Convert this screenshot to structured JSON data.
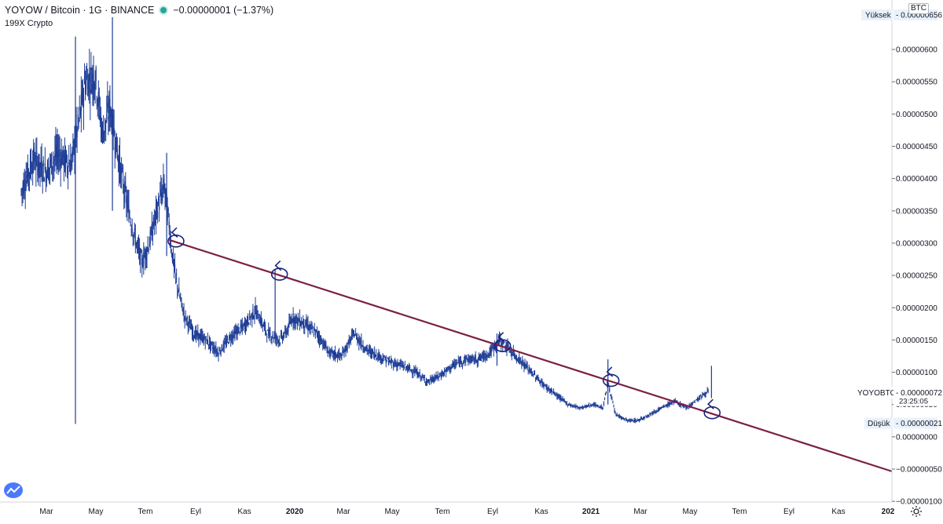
{
  "header": {
    "symbol_line": "YOYOW / Bitcoin · 1G · BINANCE",
    "change": "−0.00000001 (−1.37%)",
    "indicator": "199X Crypto",
    "currency": "BTC"
  },
  "chart_data": {
    "type": "candlestick",
    "symbol": "YOYOBTC",
    "x_tick_labels": [
      "Mar",
      "May",
      "Tem",
      "Eyl",
      "Kas",
      "2020",
      "Mar",
      "May",
      "Tem",
      "Eyl",
      "Kas",
      "2021",
      "Mar",
      "May",
      "Tem",
      "Eyl",
      "Kas",
      "202"
    ],
    "y_ticks": [
      6e-06,
      5.5e-06,
      5e-06,
      4.5e-06,
      4e-06,
      3.5e-06,
      3e-06,
      2.5e-06,
      2e-06,
      1.5e-06,
      1e-06,
      5e-07,
      0.0,
      -5e-07,
      -1e-06
    ],
    "y_tick_labels": [
      "0.00000600",
      "0.00000550",
      "0.00000500",
      "0.00000450",
      "0.00000400",
      "0.00000350",
      "0.00000300",
      "0.00000250",
      "0.00000200",
      "0.00000150",
      "0.00000100",
      "0.00000050",
      "0.00000000",
      "−0.00000050",
      "−0.00000100"
    ],
    "ylim": [
      -1.1e-06,
      6.5e-06
    ],
    "high_label": "Yüksek",
    "high_value": "0.00000656",
    "low_label": "Düşük",
    "low_value": "0.00000021",
    "last_label": "YOYOBTC",
    "last_value": "0.00000072",
    "countdown": "23:25:05",
    "series": [
      {
        "month": 0,
        "close": 3.8e-06
      },
      {
        "month": 0.5,
        "close": 4.3e-06
      },
      {
        "month": 1,
        "close": 4.1e-06
      },
      {
        "month": 1.5,
        "close": 4.4e-06
      },
      {
        "month": 2,
        "close": 4.2e-06
      },
      {
        "month": 2.3,
        "close": 4.8e-06
      },
      {
        "month": 2.6,
        "close": 5.5e-06
      },
      {
        "month": 3,
        "close": 5.6e-06
      },
      {
        "month": 3.3,
        "close": 4.7e-06
      },
      {
        "month": 3.6,
        "close": 5.1e-06
      },
      {
        "month": 4,
        "close": 4.2e-06
      },
      {
        "month": 4.3,
        "close": 3.6e-06
      },
      {
        "month": 4.6,
        "close": 3.1e-06
      },
      {
        "month": 4.9,
        "close": 2.7e-06
      },
      {
        "month": 5.2,
        "close": 3e-06
      },
      {
        "month": 5.5,
        "close": 3.5e-06
      },
      {
        "month": 5.8,
        "close": 3.9e-06
      },
      {
        "month": 6,
        "close": 3.3e-06
      },
      {
        "month": 6.1,
        "close": 2.9e-06
      },
      {
        "month": 6.3,
        "close": 2.4e-06
      },
      {
        "month": 6.6,
        "close": 1.9e-06
      },
      {
        "month": 7,
        "close": 1.6e-06
      },
      {
        "month": 7.5,
        "close": 1.5e-06
      },
      {
        "month": 8,
        "close": 1.3e-06
      },
      {
        "month": 8.5,
        "close": 1.55e-06
      },
      {
        "month": 9,
        "close": 1.7e-06
      },
      {
        "month": 9.5,
        "close": 1.95e-06
      },
      {
        "month": 10,
        "close": 1.6e-06
      },
      {
        "month": 10.5,
        "close": 1.5e-06
      },
      {
        "month": 10.8,
        "close": 1.65e-06
      },
      {
        "month": 11,
        "close": 1.85e-06
      },
      {
        "month": 11.5,
        "close": 1.75e-06
      },
      {
        "month": 12,
        "close": 1.6e-06
      },
      {
        "month": 12.5,
        "close": 1.3e-06
      },
      {
        "month": 13,
        "close": 1.25e-06
      },
      {
        "month": 13.5,
        "close": 1.6e-06
      },
      {
        "month": 14,
        "close": 1.35e-06
      },
      {
        "month": 14.5,
        "close": 1.25e-06
      },
      {
        "month": 15,
        "close": 1.15e-06
      },
      {
        "month": 15.5,
        "close": 1.1e-06
      },
      {
        "month": 16,
        "close": 1e-06
      },
      {
        "month": 16.5,
        "close": 8.5e-07
      },
      {
        "month": 17,
        "close": 9.5e-07
      },
      {
        "month": 17.5,
        "close": 1.1e-06
      },
      {
        "month": 18,
        "close": 1.2e-06
      },
      {
        "month": 18.5,
        "close": 1.2e-06
      },
      {
        "month": 19,
        "close": 1.3e-06
      },
      {
        "month": 19.4,
        "close": 1.5e-06
      },
      {
        "month": 19.8,
        "close": 1.35e-06
      },
      {
        "month": 20.2,
        "close": 1.2e-06
      },
      {
        "month": 20.7,
        "close": 1e-06
      },
      {
        "month": 21.2,
        "close": 8e-07
      },
      {
        "month": 21.7,
        "close": 6.5e-07
      },
      {
        "month": 22.2,
        "close": 5e-07
      },
      {
        "month": 22.7,
        "close": 4.5e-07
      },
      {
        "month": 23.2,
        "close": 5e-07
      },
      {
        "month": 23.6,
        "close": 4.5e-07
      },
      {
        "month": 23.8,
        "close": 8.5e-07
      },
      {
        "month": 24.1,
        "close": 3.5e-07
      },
      {
        "month": 24.6,
        "close": 2.5e-07
      },
      {
        "month": 25,
        "close": 2.5e-07
      },
      {
        "month": 25.5,
        "close": 3.5e-07
      },
      {
        "month": 26,
        "close": 4.5e-07
      },
      {
        "month": 26.5,
        "close": 5.5e-07
      },
      {
        "month": 27,
        "close": 4.5e-07
      },
      {
        "month": 27.5,
        "close": 6e-07
      },
      {
        "month": 27.9,
        "close": 7.2e-07
      }
    ],
    "spikes": [
      {
        "month": 2.2,
        "high": 6.2e-06,
        "low": 2e-07
      },
      {
        "month": 3.7,
        "high": 6.5e-06,
        "low": 3.5e-06
      },
      {
        "month": 5.9,
        "high": 4.4e-06,
        "low": 2.8e-06
      },
      {
        "month": 10.3,
        "high": 2.6e-06,
        "low": 1.5e-06
      },
      {
        "month": 19.3,
        "high": 1.6e-06,
        "low": 1.1e-06
      },
      {
        "month": 23.8,
        "high": 1.2e-06,
        "low": 5e-07
      },
      {
        "month": 28.0,
        "high": 1.1e-06,
        "low": 6e-07
      }
    ],
    "trendline": {
      "start_month": 6.0,
      "start_value": 3.05e-06,
      "end_month": 32.5,
      "end_value": -1.9e-07
    },
    "markers": [
      6.15,
      10.35,
      19.4,
      23.8,
      27.9
    ],
    "grid": false
  },
  "colors": {
    "candle": "#1e3d96",
    "trendline": "#7b1f46",
    "marker": "#1a237e",
    "axis_text": "#131722",
    "label_bg": "#e9f2fb",
    "last_price_bg": "#ffffff"
  }
}
